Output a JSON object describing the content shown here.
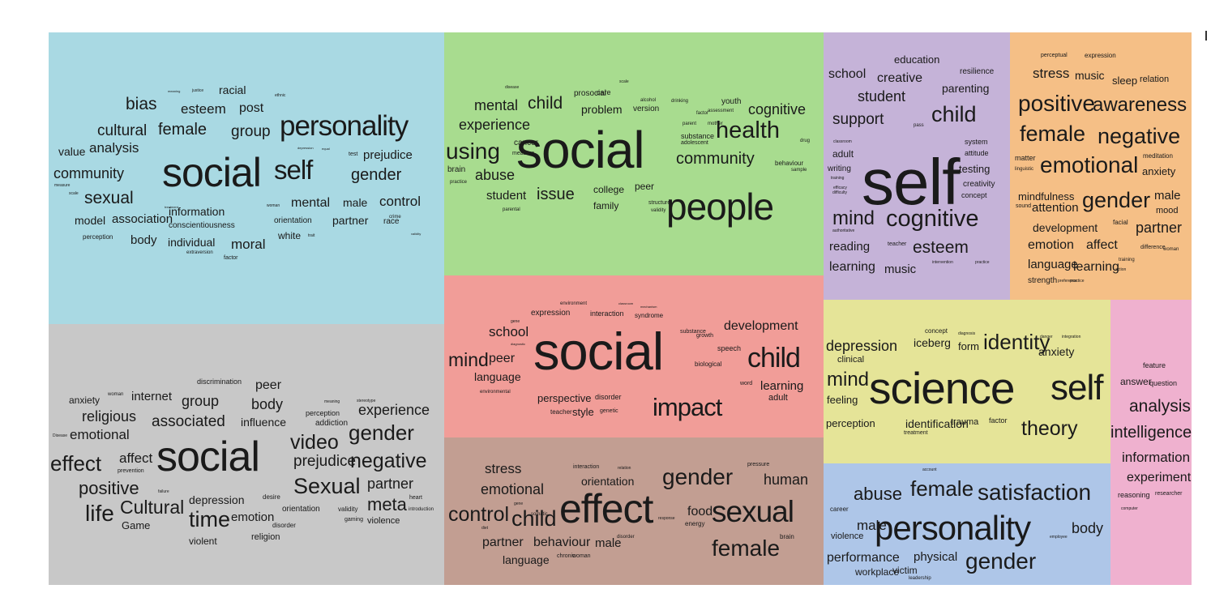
{
  "panels": [
    {
      "id": "blue",
      "color": "#a9d9e3",
      "words": [
        "social",
        "personality",
        "self",
        "gender",
        "bias",
        "esteem",
        "post",
        "racial",
        "justice",
        "meaning",
        "ethnic",
        "cultural",
        "female",
        "group",
        "value",
        "analysis",
        "prejudice",
        "test",
        "community",
        "measure",
        "scale",
        "sexual",
        "information",
        "mental",
        "male",
        "control",
        "model",
        "association",
        "conscientiousness",
        "orientation",
        "partner",
        "race",
        "crime",
        "perception",
        "body",
        "individual",
        "moral",
        "white",
        "trait",
        "extraversion",
        "factor",
        "treatment",
        "woman",
        "validity",
        "depression",
        "equal",
        "neuroticism"
      ]
    },
    {
      "id": "green",
      "color": "#a8dc8f",
      "words": [
        "social",
        "people",
        "health",
        "mental",
        "child",
        "experience",
        "using",
        "abuse",
        "student",
        "issue",
        "college",
        "peer",
        "family",
        "cognitive",
        "community",
        "prosocial",
        "care",
        "problem",
        "version",
        "alcohol",
        "drinking",
        "factor",
        "youth",
        "assessment",
        "parent",
        "mother",
        "substance",
        "adolescent",
        "behaviour",
        "sample",
        "drug",
        "cancer",
        "measure",
        "brain",
        "practice",
        "parental",
        "structure",
        "validity",
        "disease",
        "scale"
      ]
    },
    {
      "id": "purple",
      "color": "#c5b3d8",
      "words": [
        "self",
        "child",
        "cognitive",
        "school",
        "creative",
        "education",
        "resilience",
        "parenting",
        "student",
        "support",
        "pass",
        "mind",
        "esteem",
        "reading",
        "teacher",
        "learning",
        "music",
        "intervention",
        "practice",
        "system",
        "attitude",
        "testing",
        "creativity",
        "concept",
        "adult",
        "writing",
        "training",
        "efficacy",
        "classroom",
        "difficulty",
        "authoritative"
      ]
    },
    {
      "id": "orange",
      "color": "#f5bf86",
      "words": [
        "perceptual",
        "expression",
        "stress",
        "music",
        "sleep",
        "relation",
        "positive",
        "awareness",
        "female",
        "negative",
        "matter",
        "linguistic",
        "emotional",
        "meditation",
        "anxiety",
        "mindfulness",
        "sound",
        "attention",
        "gender",
        "male",
        "mood",
        "development",
        "facial",
        "partner",
        "emotion",
        "affect",
        "difference",
        "woman",
        "language",
        "learning",
        "action",
        "training",
        "strength",
        "preference",
        "practice"
      ]
    },
    {
      "id": "red",
      "color": "#f19d98",
      "words": [
        "social",
        "child",
        "impact",
        "mind",
        "peer",
        "language",
        "school",
        "development",
        "learning",
        "adult",
        "expression",
        "interaction",
        "syndrome",
        "environment",
        "classroom",
        "mechanism",
        "gene",
        "diagnostic",
        "perspective",
        "disorder",
        "teacher",
        "style",
        "genetic",
        "growth",
        "speech",
        "biological",
        "word",
        "environmental",
        "substance"
      ]
    },
    {
      "id": "gray",
      "color": "#c8c8c8",
      "words": [
        "social",
        "gender",
        "Sexual",
        "negative",
        "effect",
        "affect",
        "prevention",
        "positive",
        "life",
        "Cultural",
        "time",
        "Game",
        "emotion",
        "disorder",
        "orientation",
        "validity",
        "gaming",
        "meta",
        "heart",
        "introduction",
        "violence",
        "religion",
        "violent",
        "video",
        "prejudice",
        "partner",
        "anxiety",
        "woman",
        "internet",
        "group",
        "body",
        "peer",
        "discrimination",
        "religious",
        "associated",
        "influence",
        "perception",
        "addiction",
        "meaning",
        "stereotype",
        "experience",
        "emotional",
        "Disease",
        "depression",
        "desire",
        "failure"
      ]
    },
    {
      "id": "brown",
      "color": "#c29e92",
      "words": [
        "effect",
        "sexual",
        "gender",
        "child",
        "control",
        "stress",
        "emotional",
        "orientation",
        "interaction",
        "relation",
        "female",
        "human",
        "pressure",
        "food",
        "energy",
        "response",
        "partner",
        "behaviour",
        "male",
        "disorder",
        "language",
        "chronic",
        "woman",
        "brain",
        "diet",
        "gene",
        "somatic"
      ]
    },
    {
      "id": "yellow",
      "color": "#e5e498",
      "words": [
        "science",
        "self",
        "identity",
        "theory",
        "depression",
        "iceberg",
        "form",
        "concept",
        "diagnosis",
        "clinical",
        "anxiety",
        "danger",
        "integration",
        "mind",
        "feeling",
        "perception",
        "identification",
        "trauma",
        "factor",
        "treatment"
      ]
    },
    {
      "id": "lightblue",
      "color": "#aec6e8",
      "words": [
        "personality",
        "satisfaction",
        "abuse",
        "female",
        "gender",
        "body",
        "male",
        "violence",
        "career",
        "performance",
        "physical",
        "workplace",
        "victim",
        "leadership",
        "account",
        "employee"
      ]
    },
    {
      "id": "pink",
      "color": "#efb1cf",
      "words": [
        "analysis",
        "intelligence",
        "information",
        "experiment",
        "feature",
        "answer",
        "question",
        "reasoning",
        "researcher",
        "computer"
      ]
    }
  ]
}
